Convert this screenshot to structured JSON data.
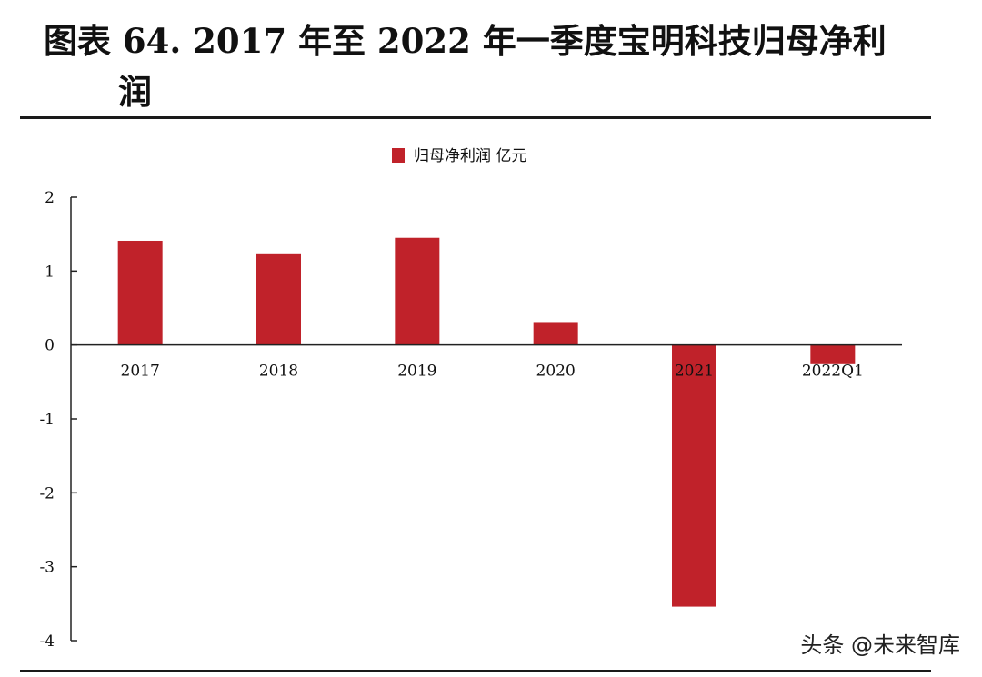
{
  "title": {
    "line1": "图表 64. 2017 年至 2022 年一季度宝明科技归母净利",
    "line2": "润"
  },
  "watermark": {
    "prefix": "头条 @",
    "name": "未来智库"
  },
  "colors": {
    "bar": "#c0222a",
    "axis": "#222222",
    "text": "#111111"
  },
  "chart_data": {
    "type": "bar",
    "categories": [
      "2017",
      "2018",
      "2019",
      "2020",
      "2021",
      "2022Q1"
    ],
    "series": [
      {
        "name": "归母净利润 亿元",
        "values": [
          1.41,
          1.24,
          1.45,
          0.31,
          -3.54,
          -0.26
        ]
      }
    ],
    "ylim": [
      -4,
      2
    ],
    "yticks": [
      2,
      1,
      0,
      -1,
      -2,
      -3,
      -4
    ],
    "xlabel": "",
    "ylabel": "",
    "legend_position": "top-center",
    "grid": false
  }
}
